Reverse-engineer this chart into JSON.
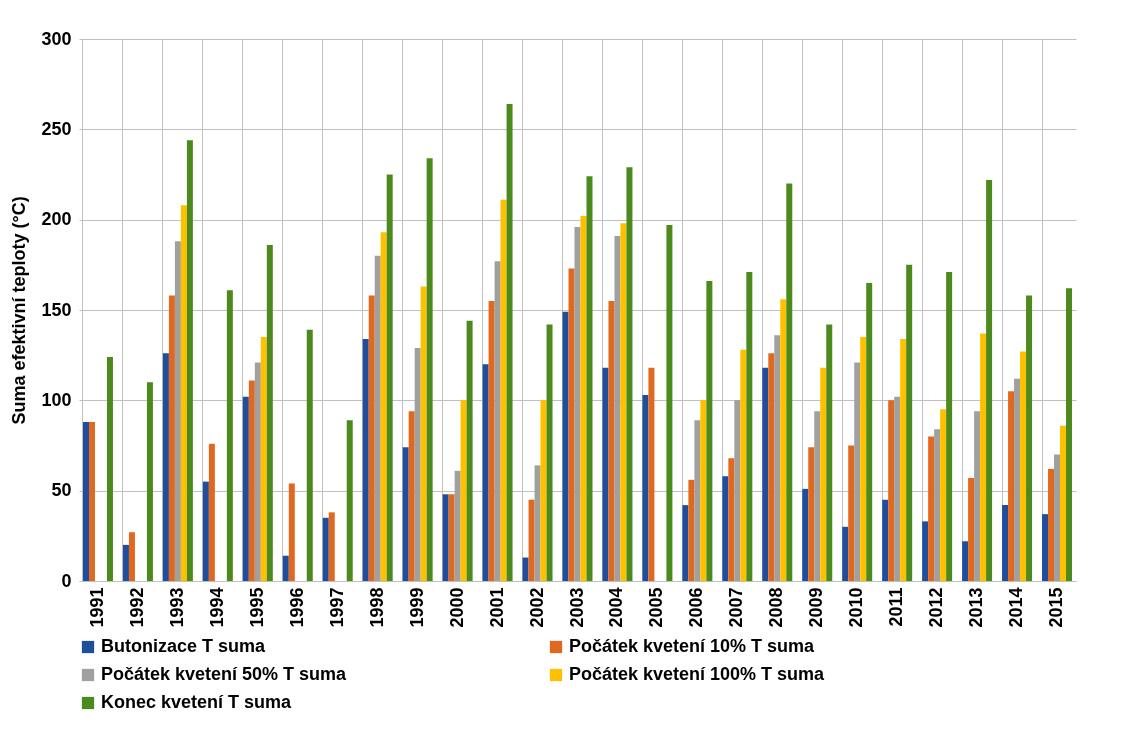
{
  "chart_data": {
    "type": "bar",
    "ylabel": "Suma efektivní teploty (°C)",
    "categories": [
      "1991",
      "1992",
      "1993",
      "1994",
      "1995",
      "1996",
      "1997",
      "1998",
      "1999",
      "2000",
      "2001",
      "2002",
      "2003",
      "2004",
      "2005",
      "2006",
      "2007",
      "2008",
      "2009",
      "2010",
      "2011",
      "2012",
      "2013",
      "2014",
      "2015"
    ],
    "series": [
      {
        "name": "Butonizace T suma",
        "color": "#1f4e9c",
        "values": [
          88,
          20,
          126,
          55,
          102,
          14,
          35,
          134,
          74,
          48,
          120,
          13,
          149,
          118,
          103,
          42,
          58,
          118,
          51,
          30,
          45,
          33,
          22,
          42,
          37
        ]
      },
      {
        "name": "Počátek kvetení 10% T suma",
        "color": "#e0691f",
        "values": [
          88,
          27,
          158,
          76,
          111,
          54,
          38,
          158,
          94,
          48,
          155,
          45,
          173,
          155,
          118,
          56,
          68,
          126,
          74,
          75,
          100,
          80,
          57,
          105,
          62
        ]
      },
      {
        "name": "Počátek kvetení 50% T suma",
        "color": "#a0a0a0",
        "values": [
          null,
          null,
          188,
          null,
          121,
          null,
          null,
          180,
          129,
          61,
          177,
          64,
          196,
          191,
          null,
          89,
          100,
          136,
          94,
          121,
          102,
          84,
          94,
          112,
          70
        ]
      },
      {
        "name": "Počátek kvetení 100% T suma",
        "color": "#ffc000",
        "values": [
          null,
          null,
          208,
          null,
          135,
          null,
          null,
          193,
          163,
          100,
          211,
          100,
          202,
          198,
          null,
          100,
          128,
          156,
          118,
          135,
          134,
          95,
          137,
          127,
          86
        ]
      },
      {
        "name": "Konec kvetení T suma",
        "color": "#4c8a1e",
        "values": [
          124,
          110,
          244,
          161,
          186,
          139,
          89,
          225,
          234,
          144,
          264,
          142,
          224,
          229,
          197,
          166,
          171,
          220,
          142,
          165,
          175,
          171,
          222,
          158,
          162
        ]
      }
    ],
    "ylim": [
      0,
      300
    ],
    "yticks": [
      0,
      50,
      100,
      150,
      200,
      250,
      300
    ],
    "grid": true,
    "legend": "bottom"
  }
}
